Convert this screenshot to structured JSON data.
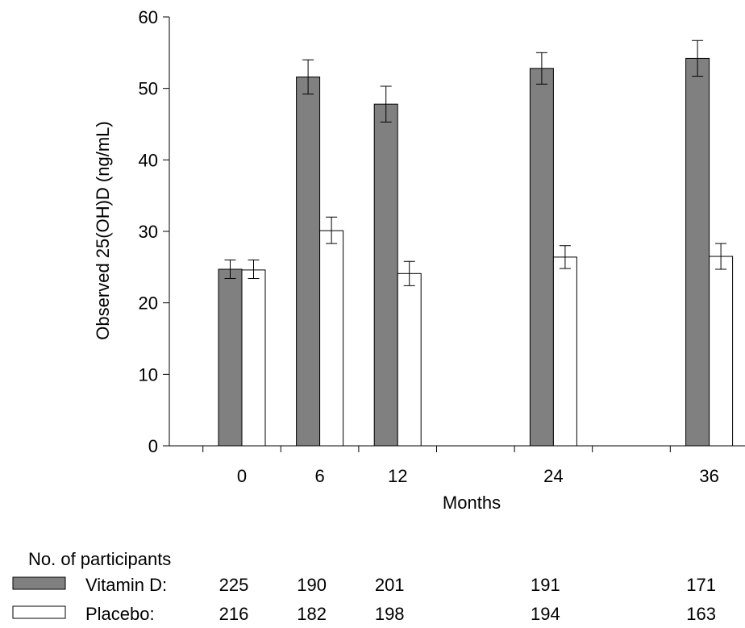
{
  "chart_data": {
    "type": "bar",
    "categories": [
      "0",
      "6",
      "12",
      "24",
      "36"
    ],
    "x_months": [
      0,
      6,
      12,
      24,
      36
    ],
    "xlabel": "Months",
    "ylabel": "Observed 25(OH)D (ng/mL)",
    "ylim": [
      0,
      60
    ],
    "yticks": [
      "0",
      "10",
      "20",
      "30",
      "40",
      "50",
      "60"
    ],
    "grid": false,
    "series": [
      {
        "name": "Vitamin D:",
        "color": "#808080",
        "values": [
          24.7,
          51.6,
          47.8,
          52.8,
          54.2
        ],
        "err_low": [
          23.4,
          49.2,
          45.3,
          50.6,
          51.7
        ],
        "err_high": [
          26.0,
          54.0,
          50.3,
          55.0,
          56.7
        ]
      },
      {
        "name": "Placebo:",
        "color": "#ffffff",
        "values": [
          24.6,
          30.1,
          24.1,
          26.4,
          26.5
        ],
        "err_low": [
          23.4,
          28.3,
          22.4,
          24.8,
          24.7
        ],
        "err_high": [
          26.0,
          32.0,
          25.8,
          28.0,
          28.3
        ]
      }
    ]
  },
  "participants": {
    "title": "No. of participants",
    "rows": [
      {
        "label": "Vitamin D:",
        "counts": [
          "225",
          "190",
          "201",
          "191",
          "171"
        ]
      },
      {
        "label": "Placebo:",
        "counts": [
          "216",
          "182",
          "198",
          "194",
          "163"
        ]
      }
    ]
  }
}
